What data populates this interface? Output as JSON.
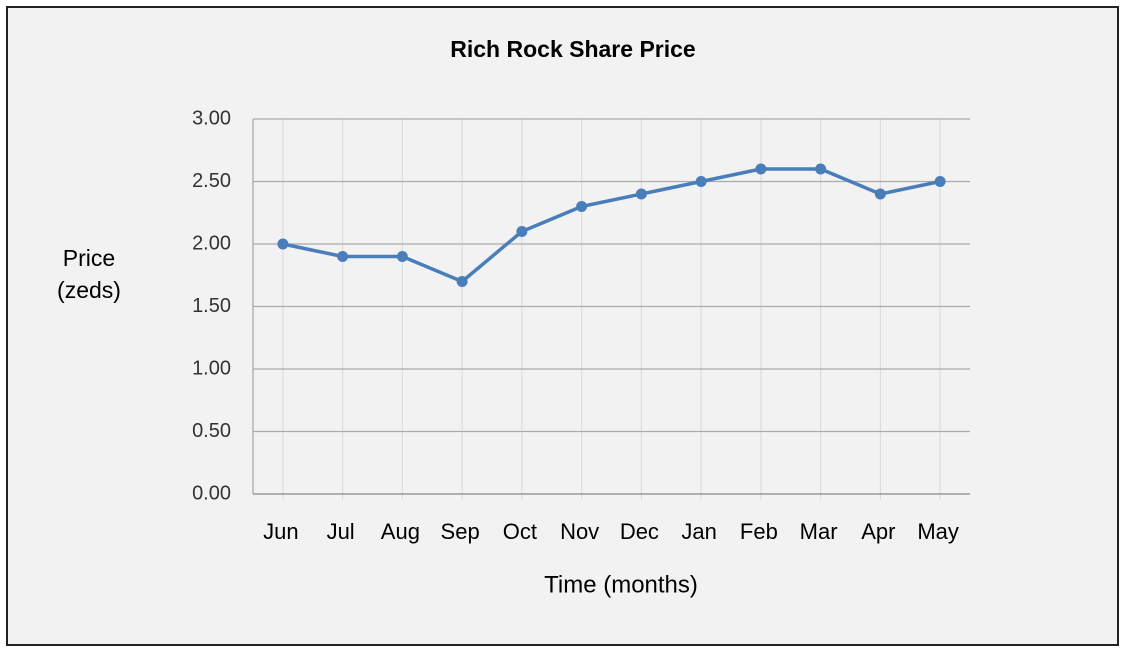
{
  "chart_data": {
    "type": "line",
    "title": "Rich Rock Share Price",
    "ylabel": "Price (zeds)",
    "xlabel": "Time (months)",
    "categories": [
      "Jun",
      "Jul",
      "Aug",
      "Sep",
      "Oct",
      "Nov",
      "Dec",
      "Jan",
      "Feb",
      "Mar",
      "Apr",
      "May"
    ],
    "values": [
      2.0,
      1.9,
      1.9,
      1.7,
      2.1,
      2.3,
      2.4,
      2.5,
      2.6,
      2.6,
      2.4,
      2.5
    ],
    "color": "#4a7ebb",
    "ylim": [
      0,
      3
    ],
    "yticks": [
      {
        "value": 0,
        "label": "0.00"
      },
      {
        "value": 0.5,
        "label": "0.50"
      },
      {
        "value": 1,
        "label": "1.00"
      },
      {
        "value": 1.5,
        "label": "1.50"
      },
      {
        "value": 2,
        "label": "2.00"
      },
      {
        "value": 2.5,
        "label": "2.50"
      },
      {
        "value": 3,
        "label": "3.00"
      }
    ],
    "grid": true
  }
}
